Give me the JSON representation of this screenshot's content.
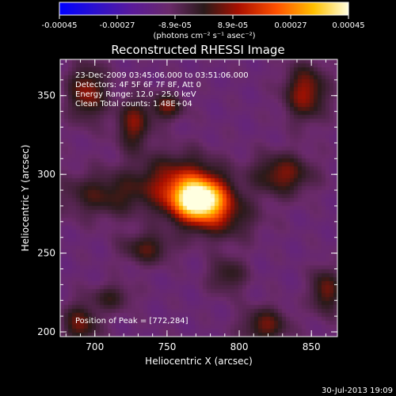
{
  "chart_data": {
    "type": "heatmap",
    "title": "Reconstructed RHESSI Image",
    "xlabel": "Heliocentric X (arcsec)",
    "ylabel": "Heliocentric Y (arcsec)",
    "xlim": [
      676,
      868
    ],
    "ylim": [
      197,
      373
    ],
    "x_ticks": [
      700,
      750,
      800,
      850
    ],
    "y_ticks": [
      200,
      250,
      300,
      350
    ],
    "colorbar": {
      "range": [
        -0.00045,
        0.00045
      ],
      "ticks": [
        "-0.00045",
        "-0.00027",
        "-8.9e-05",
        "8.9e-05",
        "0.00027",
        "0.00045"
      ],
      "unit_label": "(photons cm⁻² s⁻¹ asec⁻²)"
    },
    "annotations": {
      "time_range": "23-Dec-2009 03:45:06.000 to 03:51:06.000",
      "detectors": "Detectors: 4F 5F 6F 7F 8F, Att 0",
      "energy": "Energy Range: 12.0 - 25.0 keV",
      "clean": "Clean    Total counts: 1.48E+04",
      "peak": "Position of Peak = [772,284]"
    },
    "peak": [
      772,
      284
    ],
    "blobs": [
      {
        "x": 772,
        "y": 284,
        "sx": 13,
        "sy": 9,
        "amp": 1.0
      },
      {
        "x": 758,
        "y": 296,
        "sx": 20,
        "sy": 12,
        "amp": 0.35
      },
      {
        "x": 786,
        "y": 272,
        "sx": 18,
        "sy": 10,
        "amp": 0.25
      },
      {
        "x": 727,
        "y": 332,
        "sx": 8,
        "sy": 11,
        "amp": 0.33
      },
      {
        "x": 750,
        "y": 343,
        "sx": 8,
        "sy": 6,
        "amp": 0.3
      },
      {
        "x": 695,
        "y": 352,
        "sx": 9,
        "sy": 12,
        "amp": 0.36
      },
      {
        "x": 846,
        "y": 352,
        "sx": 10,
        "sy": 12,
        "amp": 0.38
      },
      {
        "x": 830,
        "y": 300,
        "sx": 14,
        "sy": 9,
        "amp": 0.33
      },
      {
        "x": 706,
        "y": 287,
        "sx": 22,
        "sy": 10,
        "amp": 0.24
      },
      {
        "x": 736,
        "y": 253,
        "sx": 12,
        "sy": 7,
        "amp": 0.26
      },
      {
        "x": 690,
        "y": 205,
        "sx": 9,
        "sy": 9,
        "amp": 0.3
      },
      {
        "x": 818,
        "y": 204,
        "sx": 11,
        "sy": 8,
        "amp": 0.3
      },
      {
        "x": 860,
        "y": 226,
        "sx": 7,
        "sy": 10,
        "amp": 0.32
      },
      {
        "x": 792,
        "y": 236,
        "sx": 9,
        "sy": 8,
        "amp": 0.22
      },
      {
        "x": 712,
        "y": 222,
        "sx": 10,
        "sy": 6,
        "amp": 0.2
      }
    ],
    "background_level": -0.28
  },
  "footer": {
    "timestamp": "30-Jul-2013 19:09"
  }
}
